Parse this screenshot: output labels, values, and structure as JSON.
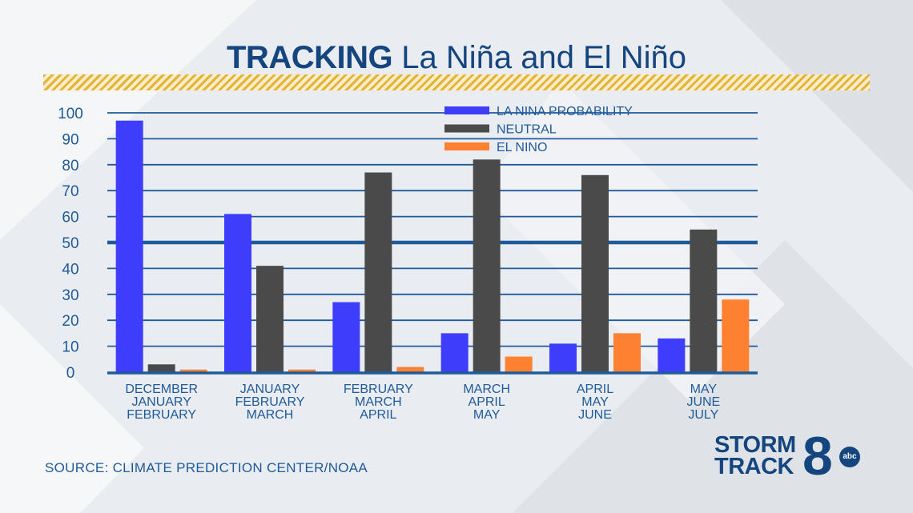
{
  "title": {
    "bold": "TRACKING",
    "regular": "La Niña and El Niño"
  },
  "source": "SOURCE: CLIMATE PREDICTION CENTER/NOAA",
  "logo": {
    "line1": "STORM",
    "line2": "TRACK",
    "number": "8",
    "network": "abc"
  },
  "colors": {
    "la_nina": "#3d3dfa",
    "neutral": "#4a4a4a",
    "el_nino": "#fd8130",
    "title": "#14457e",
    "grid": "#1f5a9a"
  },
  "chart_data": {
    "type": "bar",
    "title": "TRACKING La Niña and El Niño",
    "categories": [
      [
        "DECEMBER",
        "JANUARY",
        "FEBRUARY"
      ],
      [
        "JANUARY",
        "FEBRUARY",
        "MARCH"
      ],
      [
        "FEBRUARY",
        "MARCH",
        "APRIL"
      ],
      [
        "MARCH",
        "APRIL",
        "MAY"
      ],
      [
        "APRIL",
        "MAY",
        "JUNE"
      ],
      [
        "MAY",
        "JUNE",
        "JULY"
      ]
    ],
    "series": [
      {
        "name": "LA NINA PROBABILITY",
        "color": "#3d3dfa",
        "values": [
          97,
          61,
          27,
          15,
          11,
          13
        ]
      },
      {
        "name": "NEUTRAL",
        "color": "#4a4a4a",
        "values": [
          3,
          41,
          77,
          82,
          76,
          55
        ]
      },
      {
        "name": "EL NINO",
        "color": "#fd8130",
        "values": [
          1,
          1,
          2,
          6,
          15,
          28
        ]
      }
    ],
    "ylim": [
      0,
      100
    ],
    "yticks": [
      0,
      10,
      20,
      30,
      40,
      50,
      60,
      70,
      80,
      90,
      100
    ],
    "reference_line": 50,
    "grid": true,
    "legend": "top-center"
  }
}
